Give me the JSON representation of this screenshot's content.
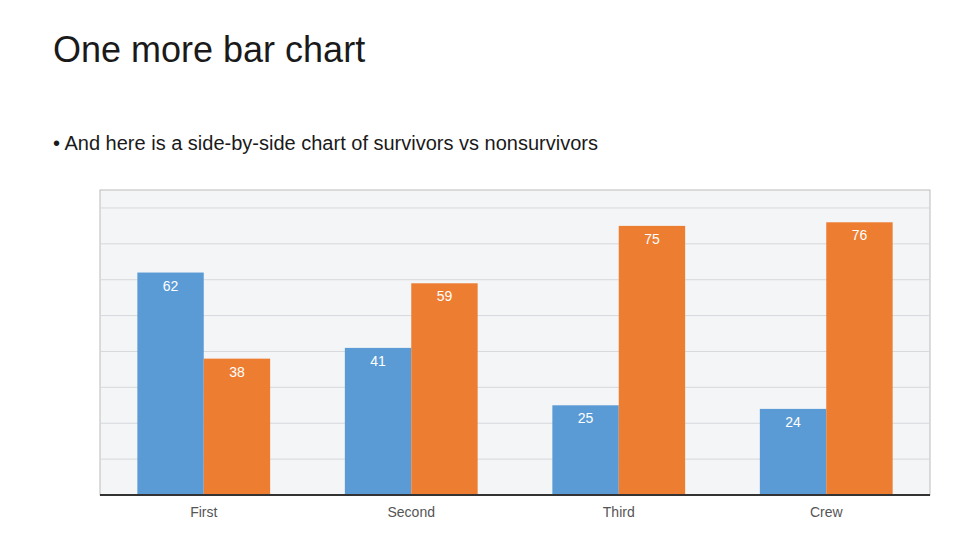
{
  "chart_data": {
    "type": "bar",
    "title": "One more bar chart",
    "subtitle": "• And here is a side-by-side chart of survivors vs nonsurvivors",
    "categories": [
      "First",
      "Second",
      "Third",
      "Crew"
    ],
    "series": [
      {
        "color": "#5B9BD5",
        "values": [
          62,
          41,
          25,
          24
        ]
      },
      {
        "color": "#ED7D31",
        "values": [
          38,
          59,
          75,
          76
        ]
      }
    ],
    "ylim": [
      0,
      85
    ],
    "yticks": [
      0,
      10,
      20,
      30,
      40,
      50,
      60,
      70,
      80
    ],
    "grid": true,
    "data_labels": true,
    "tick_labels": "x"
  }
}
